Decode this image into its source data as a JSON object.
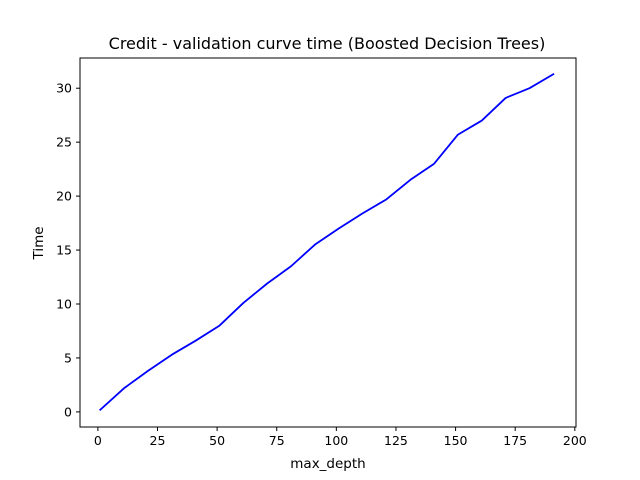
{
  "chart_data": {
    "type": "line",
    "title": "Credit - validation curve time (Boosted Decision Trees)",
    "xlabel": "max_depth",
    "ylabel": "Time",
    "xlim": [
      -7.5,
      200.5
    ],
    "ylim": [
      -1.4,
      32.8
    ],
    "xticks": [
      0,
      25,
      50,
      75,
      100,
      125,
      150,
      175,
      200
    ],
    "yticks": [
      0,
      5,
      10,
      15,
      20,
      25,
      30
    ],
    "grid": false,
    "series": [
      {
        "name": "Time",
        "color": "#0000ff",
        "x": [
          1,
          11,
          21,
          31,
          41,
          51,
          61,
          71,
          81,
          91,
          101,
          111,
          121,
          131,
          141,
          151,
          161,
          171,
          181,
          191
        ],
        "y": [
          0.2,
          2.2,
          3.8,
          5.3,
          6.6,
          8.0,
          10.1,
          11.9,
          13.5,
          15.5,
          17.0,
          18.4,
          19.7,
          21.5,
          23.0,
          25.7,
          27.0,
          29.1,
          30.0,
          31.3
        ]
      }
    ]
  }
}
